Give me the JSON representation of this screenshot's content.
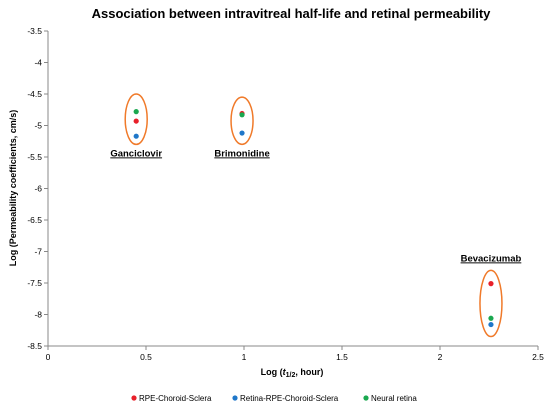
{
  "chart_data": {
    "type": "scatter",
    "title": "Association between intravitreal half-life and retinal permeability",
    "xlabel_pre": "Log (",
    "xlabel_var": "t",
    "xlabel_sub": "1/2",
    "xlabel_post": ", hour)",
    "ylabel": "Log (Permeability coefficients, cm/s)",
    "xlim": [
      0,
      2.5
    ],
    "ylim": [
      -8.5,
      -3.5
    ],
    "xticks": [
      0,
      0.5,
      1,
      1.5,
      2,
      2.5
    ],
    "xtick_labels": [
      "0",
      "0.5",
      "1",
      "1.5",
      "2",
      "2.5"
    ],
    "yticks": [
      -3.5,
      -4,
      -4.5,
      -5,
      -5.5,
      -6,
      -6.5,
      -7,
      -7.5,
      -8,
      -8.5
    ],
    "ytick_labels": [
      "-3.5",
      "-4",
      "-4.5",
      "-5",
      "-5.5",
      "-6",
      "-6.5",
      "-7",
      "-7.5",
      "-8",
      "-8.5"
    ],
    "grid": false,
    "legend_position": "bottom",
    "series": [
      {
        "name": "RPE-Choroid-Sclera",
        "color": "#e8202a",
        "x": [
          0.45,
          0.99,
          2.26
        ],
        "y": [
          -4.93,
          -4.81,
          -7.51
        ]
      },
      {
        "name": "Retina-RPE-Choroid-Sclera",
        "color": "#1f77c9",
        "x": [
          0.45,
          0.99,
          2.26
        ],
        "y": [
          -5.17,
          -5.12,
          -8.16
        ]
      },
      {
        "name": "Neural retina",
        "color": "#1aa84f",
        "x": [
          0.45,
          0.99,
          2.26
        ],
        "y": [
          -4.78,
          -4.83,
          -8.06
        ]
      }
    ],
    "groups": [
      {
        "label": "Ganciclovir",
        "x": 0.45,
        "y_min": -5.3,
        "y_max": -4.5
      },
      {
        "label": "Brimonidine",
        "x": 0.99,
        "y_min": -5.3,
        "y_max": -4.55
      },
      {
        "label": "Bevacizumab",
        "x": 2.26,
        "y_min": -8.35,
        "y_max": -7.3
      }
    ],
    "ellipse_color": "#f07a2a"
  }
}
